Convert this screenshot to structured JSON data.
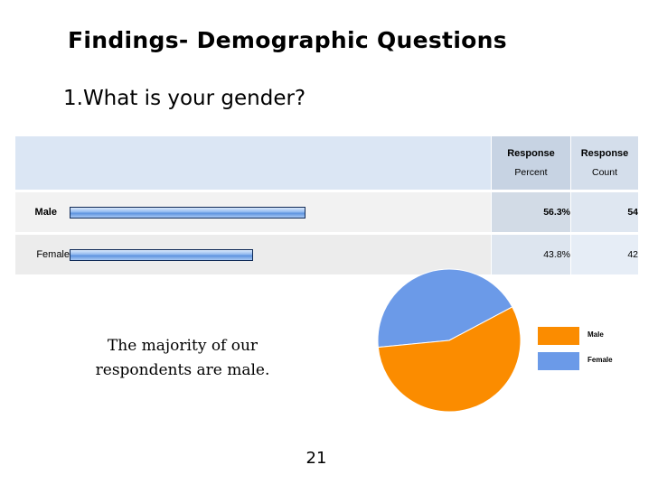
{
  "slide": {
    "title": "Findings- Demographic Questions",
    "question": "1.What is your gender?",
    "caption": "The majority of our respondents are male.",
    "page_number": "21"
  },
  "table": {
    "headers": {
      "percent": [
        "Response",
        "Percent"
      ],
      "count": [
        "Response",
        "Count"
      ]
    },
    "rows": [
      {
        "label": "Male",
        "percent": "56.3%",
        "count": "54",
        "value": 56.3
      },
      {
        "label": "Female",
        "percent": "43.8%",
        "count": "42",
        "value": 43.8
      }
    ]
  },
  "chart_data": [
    {
      "type": "bar",
      "orientation": "horizontal",
      "categories": [
        "Male",
        "Female"
      ],
      "values": [
        56.3,
        43.8
      ],
      "data_labels": [
        "56.3%",
        "43.8%"
      ],
      "counts": [
        54,
        42
      ],
      "title": "",
      "xlabel": "",
      "ylabel": ""
    },
    {
      "type": "pie",
      "categories": [
        "Male",
        "Female"
      ],
      "values": [
        54,
        42
      ],
      "colors": [
        "#fb8c00",
        "#6b9ae8"
      ],
      "legend": {
        "position": "right",
        "labels": [
          "Male",
          "Female"
        ]
      },
      "title": ""
    }
  ]
}
